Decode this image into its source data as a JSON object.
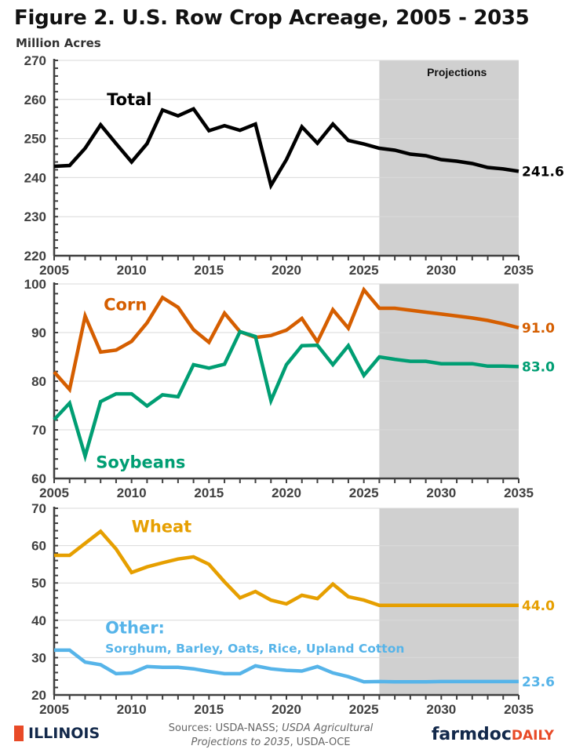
{
  "title": "Figure 2. U.S. Row Crop Acreage, 2005 - 2035",
  "units": "Million Acres",
  "footer": {
    "logo": "ILLINOIS",
    "sources_1": "Sources: USDA-NASS; ",
    "sources_italic": "USDA Agricultural Projections to 2035",
    "sources_2": ", USDA-OCE",
    "brand_main": "farmdoc",
    "brand_accent": "DAILY"
  },
  "colors": {
    "total": "#000000",
    "corn": "#d55e00",
    "soybeans": "#009e73",
    "wheat": "#e69f00",
    "other": "#56b4e9",
    "projection_shade": "#d0d0d0",
    "grid": "#d9d9d9",
    "axis": "#404040"
  },
  "chart_data": [
    {
      "type": "line",
      "ylim": [
        220,
        270
      ],
      "yticks": [
        220,
        230,
        240,
        250,
        260,
        270
      ],
      "xlim": [
        2005,
        2035
      ],
      "xticks": [
        2005,
        2010,
        2015,
        2020,
        2025,
        2030,
        2035
      ],
      "grid": true,
      "projection": {
        "label": "Projections",
        "from": 2026,
        "to": 2035
      },
      "x": [
        2005,
        2006,
        2007,
        2008,
        2009,
        2010,
        2011,
        2012,
        2013,
        2014,
        2015,
        2016,
        2017,
        2018,
        2019,
        2020,
        2021,
        2022,
        2023,
        2024,
        2025,
        2026,
        2027,
        2028,
        2029,
        2030,
        2031,
        2032,
        2033,
        2034,
        2035
      ],
      "series": [
        {
          "name": "Total",
          "color_key": "total",
          "end_label": "241.6",
          "values": [
            242.9,
            243.1,
            247.5,
            253.5,
            248.7,
            244.0,
            248.7,
            257.3,
            255.8,
            257.6,
            252.0,
            253.3,
            252.1,
            253.7,
            238.0,
            244.6,
            253.0,
            248.8,
            253.7,
            249.5,
            248.6,
            247.5,
            247.0,
            246.0,
            245.6,
            244.6,
            244.2,
            243.6,
            242.6,
            242.2,
            241.6
          ]
        }
      ]
    },
    {
      "type": "line",
      "ylim": [
        60,
        100
      ],
      "yticks": [
        60,
        70,
        80,
        90,
        100
      ],
      "xlim": [
        2005,
        2035
      ],
      "xticks": [
        2005,
        2010,
        2015,
        2020,
        2025,
        2030,
        2035
      ],
      "grid": true,
      "projection": {
        "from": 2026,
        "to": 2035
      },
      "x": [
        2005,
        2006,
        2007,
        2008,
        2009,
        2010,
        2011,
        2012,
        2013,
        2014,
        2015,
        2016,
        2017,
        2018,
        2019,
        2020,
        2021,
        2022,
        2023,
        2024,
        2025,
        2026,
        2027,
        2028,
        2029,
        2030,
        2031,
        2032,
        2033,
        2034,
        2035
      ],
      "series": [
        {
          "name": "Corn",
          "color_key": "corn",
          "end_label": "91.0",
          "values": [
            81.9,
            78.3,
            93.4,
            86.0,
            86.4,
            88.2,
            92.0,
            97.2,
            95.2,
            90.6,
            88.0,
            94.0,
            90.2,
            89.0,
            89.4,
            90.5,
            92.9,
            88.1,
            94.7,
            90.9,
            98.8,
            95.0,
            95.0,
            94.6,
            94.2,
            93.8,
            93.4,
            93.0,
            92.5,
            91.8,
            91.0
          ]
        },
        {
          "name": "Soybeans",
          "color_key": "soybeans",
          "end_label": "83.0",
          "values": [
            72.1,
            75.5,
            64.6,
            75.8,
            77.4,
            77.4,
            74.9,
            77.2,
            76.8,
            83.4,
            82.7,
            83.5,
            90.2,
            89.2,
            76.0,
            83.4,
            87.3,
            87.4,
            83.4,
            87.3,
            81.2,
            85.0,
            84.5,
            84.1,
            84.1,
            83.6,
            83.6,
            83.6,
            83.1,
            83.1,
            83.0
          ]
        }
      ]
    },
    {
      "type": "line",
      "ylim": [
        20,
        70
      ],
      "yticks": [
        20,
        30,
        40,
        50,
        60,
        70
      ],
      "xlim": [
        2005,
        2035
      ],
      "xticks": [
        2005,
        2010,
        2015,
        2020,
        2025,
        2030,
        2035
      ],
      "grid": true,
      "projection": {
        "from": 2026,
        "to": 2035
      },
      "x": [
        2005,
        2006,
        2007,
        2008,
        2009,
        2010,
        2011,
        2012,
        2013,
        2014,
        2015,
        2016,
        2017,
        2018,
        2019,
        2020,
        2021,
        2022,
        2023,
        2024,
        2025,
        2026,
        2027,
        2028,
        2029,
        2030,
        2031,
        2032,
        2033,
        2034,
        2035
      ],
      "series": [
        {
          "name": "Wheat",
          "color_key": "wheat",
          "end_label": "44.0",
          "values": [
            57.4,
            57.4,
            60.6,
            63.8,
            59.1,
            52.8,
            54.3,
            55.4,
            56.4,
            57.0,
            55.0,
            50.3,
            46.0,
            47.7,
            45.4,
            44.4,
            46.7,
            45.8,
            49.7,
            46.3,
            45.4,
            44.0,
            44.0,
            44.0,
            44.0,
            44.0,
            44.0,
            44.0,
            44.0,
            44.0,
            44.0
          ]
        },
        {
          "name": "Other:",
          "subtitle": "Sorghum, Barley, Oats, Rice, Upland Cotton",
          "color_key": "other",
          "end_label": "23.6",
          "values": [
            32.0,
            32.0,
            28.8,
            28.1,
            25.7,
            25.9,
            27.6,
            27.4,
            27.4,
            27.0,
            26.3,
            25.7,
            25.7,
            27.8,
            27.0,
            26.6,
            26.4,
            27.6,
            25.9,
            24.9,
            23.5,
            23.6,
            23.5,
            23.5,
            23.5,
            23.6,
            23.6,
            23.6,
            23.6,
            23.6,
            23.6
          ]
        }
      ]
    }
  ]
}
